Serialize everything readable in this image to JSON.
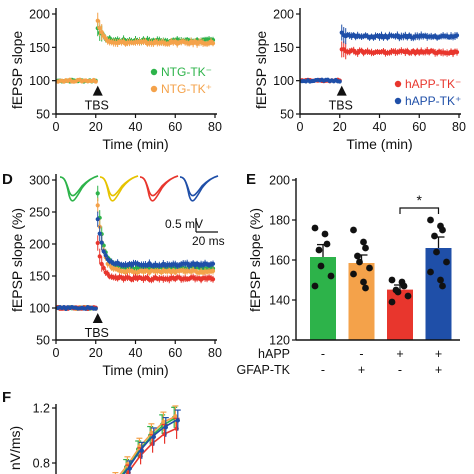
{
  "chart_data": [
    {
      "panel": "",
      "type": "scatter",
      "ylabel": "fEPSP slope",
      "xlabel": "Time (min)",
      "xlim": [
        0,
        80
      ],
      "ylim": [
        50,
        200
      ],
      "xticks": [
        0,
        20,
        40,
        60,
        80
      ],
      "yticks": [
        50,
        100,
        150,
        200
      ],
      "annotation": "TBS",
      "annotation_x": 21,
      "legend_position": "bottom-right",
      "series": [
        {
          "name": "NTG-TK⁻",
          "color": "#2db34a",
          "baseline": 100,
          "peak": 180,
          "plateau": 160
        },
        {
          "name": "NTG-TK⁺",
          "color": "#f4a24a",
          "baseline": 100,
          "peak": 190,
          "plateau": 157
        }
      ]
    },
    {
      "panel": "",
      "type": "scatter",
      "ylabel": "fEPSP slope",
      "xlabel": "Time (min)",
      "xlim": [
        0,
        80
      ],
      "ylim": [
        50,
        200
      ],
      "xticks": [
        0,
        20,
        40,
        60,
        80
      ],
      "yticks": [
        50,
        100,
        150,
        200
      ],
      "annotation": "TBS",
      "annotation_x": 21,
      "legend_position": "bottom-right",
      "series": [
        {
          "name": "hAPP-TK⁻",
          "color": "#e8362d",
          "baseline": 100,
          "peak": 148,
          "plateau": 143
        },
        {
          "name": "hAPP-TK⁺",
          "color": "#1f4fa8",
          "baseline": 100,
          "peak": 172,
          "plateau": 166
        }
      ]
    },
    {
      "panel": "D",
      "type": "scatter",
      "ylabel": "fEPSP slope (%)",
      "xlabel": "Time (min)",
      "xlim": [
        0,
        80
      ],
      "ylim": [
        50,
        300
      ],
      "xticks": [
        0,
        20,
        40,
        60,
        80
      ],
      "yticks": [
        50,
        100,
        150,
        200,
        250,
        300
      ],
      "annotation": "TBS",
      "annotation_x": 21,
      "scalebar_v": "0.5 mV",
      "scalebar_h": "20 ms",
      "trace_colors": [
        "#2db34a",
        "#e6c300",
        "#e8362d",
        "#1f4fa8"
      ],
      "series": [
        {
          "name": "NTG-TK⁻",
          "color": "#2db34a",
          "baseline": 100,
          "peak": 280,
          "plateau": 163
        },
        {
          "name": "NTG-TK⁺",
          "color": "#f4a24a",
          "baseline": 100,
          "peak": 260,
          "plateau": 157
        },
        {
          "name": "hAPP-TK⁻",
          "color": "#e8362d",
          "baseline": 100,
          "peak": 200,
          "plateau": 146
        },
        {
          "name": "hAPP-TK⁺",
          "color": "#1f4fa8",
          "baseline": 100,
          "peak": 240,
          "plateau": 168
        }
      ]
    },
    {
      "panel": "E",
      "type": "bar",
      "ylabel": "fEPSP slope (%)",
      "ylim": [
        120,
        200
      ],
      "yticks": [
        120,
        140,
        160,
        180,
        200
      ],
      "row_labels": [
        "hAPP",
        "GFAP-TK"
      ],
      "rows": [
        [
          "-",
          "-",
          "+",
          "+"
        ],
        [
          "-",
          "+",
          "-",
          "+"
        ]
      ],
      "values": [
        161.5,
        158.5,
        145.2,
        166.0
      ],
      "errors": [
        6.2,
        4.0,
        2.3,
        5.5
      ],
      "colors": [
        "#2db34a",
        "#f4a24a",
        "#e8362d",
        "#1f4fa8"
      ],
      "points": [
        [
          176,
          173,
          168,
          165,
          157,
          152,
          147
        ],
        [
          175,
          169,
          166,
          162,
          159,
          156,
          153,
          149,
          146
        ],
        [
          150,
          149,
          147,
          145,
          144,
          142,
          139
        ],
        [
          180,
          177,
          175,
          172,
          164,
          159,
          154,
          150,
          147
        ]
      ],
      "significance": "*",
      "significance_between": [
        2,
        3
      ]
    },
    {
      "panel": "F",
      "type": "line",
      "ylabel": "nV/ms)",
      "yticks": [
        0.8,
        1.2
      ],
      "colors": [
        "#2db34a",
        "#f4a24a",
        "#e8362d",
        "#1f4fa8"
      ],
      "x_points": [
        9,
        10,
        11,
        12,
        13,
        14
      ],
      "series_values": [
        [
          0.66,
          0.77,
          0.9,
          1.0,
          1.08,
          1.13
        ],
        [
          0.68,
          0.79,
          0.92,
          1.02,
          1.1,
          1.14
        ],
        [
          0.63,
          0.73,
          0.85,
          0.94,
          1.01,
          1.05
        ],
        [
          0.65,
          0.76,
          0.89,
          0.99,
          1.06,
          1.11
        ]
      ]
    }
  ]
}
